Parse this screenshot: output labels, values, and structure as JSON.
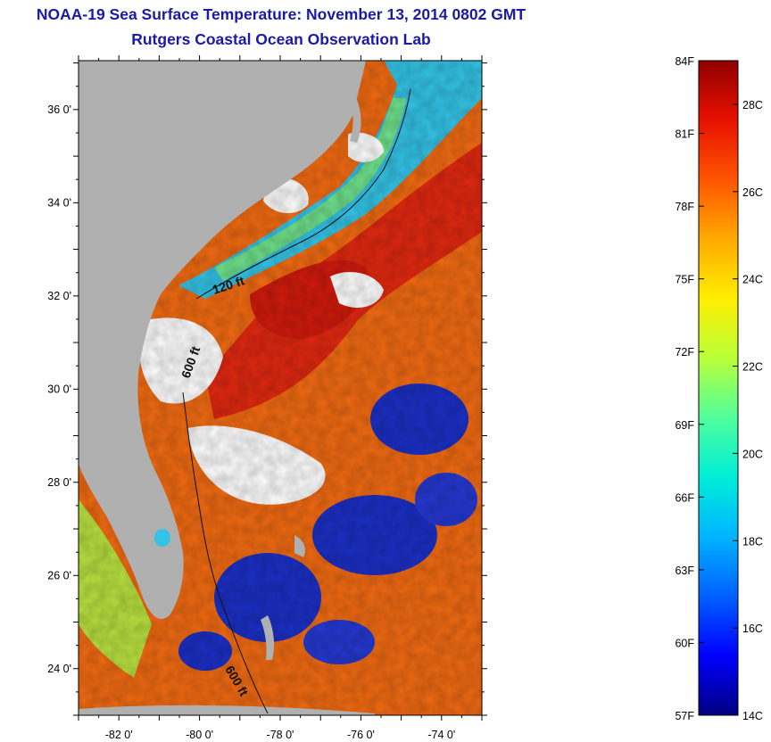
{
  "title": {
    "line1": "NOAA-19 Sea Surface Temperature:  November 13, 2014 0802 GMT",
    "line2": "Rutgers Coastal Ocean Observation Lab"
  },
  "map": {
    "lat_labels": [
      "36 0'",
      "34 0'",
      "32 0'",
      "30 0'",
      "28 0'",
      "26 0'",
      "24 0'"
    ],
    "lon_labels": [
      "-82 0'",
      "-80 0'",
      "-78 0'",
      "-76 0'",
      "-74 0'"
    ],
    "contour_labels": [
      "120 ft",
      "600 ft",
      "600 ft"
    ],
    "colors": {
      "land": "#b0b0b0",
      "cloud": "#ffffff",
      "shelf_water": "#33c3e6",
      "gulf_stream": "#e02810",
      "open_ocean": "#f06a12",
      "cool_patch": "#1a2fc4"
    }
  },
  "colorbar": {
    "fahrenheit_labels": [
      "84F",
      "81F",
      "78F",
      "75F",
      "72F",
      "69F",
      "66F",
      "63F",
      "60F",
      "57F"
    ],
    "celsius_labels": [
      "28C",
      "26C",
      "24C",
      "22C",
      "20C",
      "18C",
      "16C",
      "14C"
    ],
    "range_f": [
      57,
      84
    ],
    "range_c": [
      14,
      29
    ],
    "stops": [
      "#000080",
      "#0000ff",
      "#0060ff",
      "#00b4ff",
      "#00eed8",
      "#50ff9c",
      "#b8ff38",
      "#ffee00",
      "#ffaa00",
      "#ff5500",
      "#e81000",
      "#900000"
    ]
  }
}
